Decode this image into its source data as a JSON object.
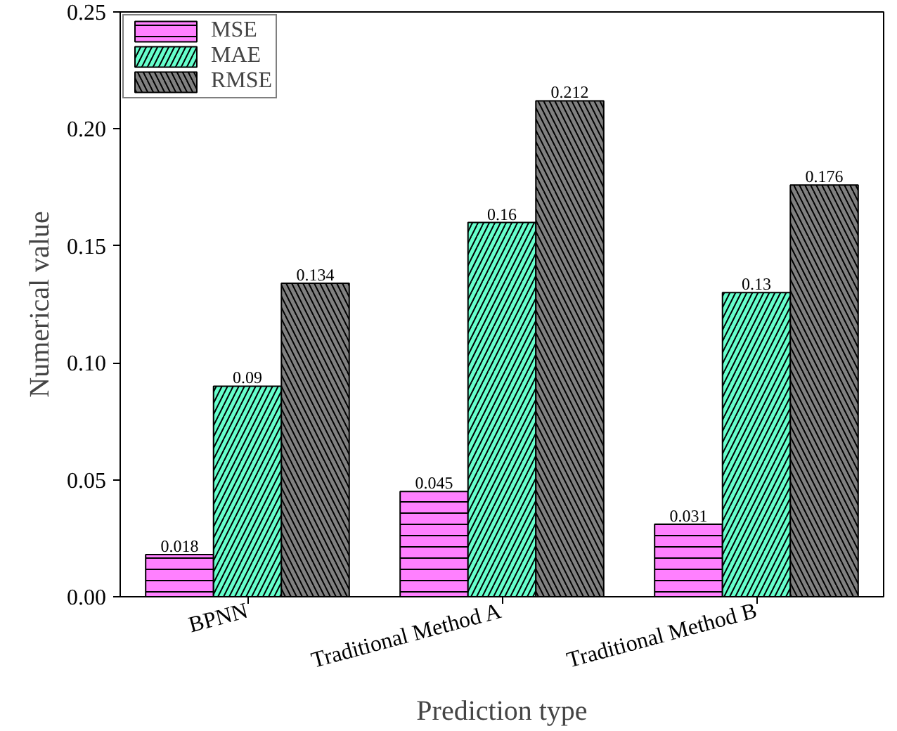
{
  "chart_data": {
    "type": "bar",
    "xlabel": "Prediction type",
    "ylabel": "Numerical value",
    "categories": [
      "BPNN",
      "Traditional Method A",
      "Traditional Method B"
    ],
    "series": [
      {
        "name": "MSE",
        "color": "#ff80ff",
        "values": [
          0.018,
          0.045,
          0.031
        ]
      },
      {
        "name": "MAE",
        "color": "#66ffcc",
        "values": [
          0.09,
          0.16,
          0.13
        ]
      },
      {
        "name": "RMSE",
        "color": "#808080",
        "values": [
          0.134,
          0.212,
          0.176
        ]
      }
    ],
    "ylim": [
      0,
      0.25
    ],
    "yticks": [
      {
        "value": 0,
        "label": "0.00"
      },
      {
        "value": 0.05,
        "label": "0.05"
      },
      {
        "value": 0.1,
        "label": "0.10"
      },
      {
        "value": 0.15,
        "label": "0.15"
      },
      {
        "value": 0.2,
        "label": "0.20"
      },
      {
        "value": 0.25,
        "label": "0.25"
      }
    ],
    "data_labels": true,
    "grid": false,
    "legend": "top left"
  }
}
